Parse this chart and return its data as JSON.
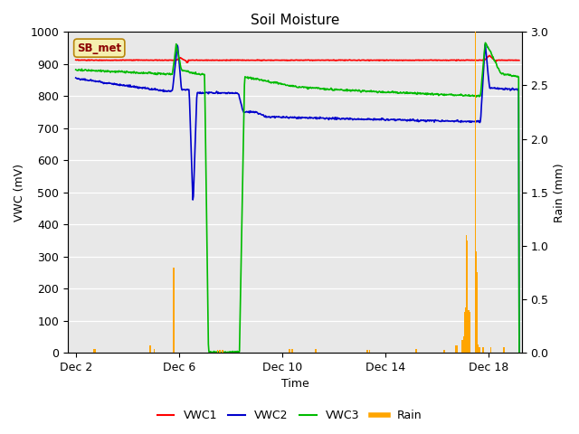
{
  "title": "Soil Moisture",
  "xlabel": "Time",
  "ylabel_left": "VWC (mV)",
  "ylabel_right": "Rain (mm)",
  "ylim_left": [
    0,
    1000
  ],
  "ylim_right": [
    0.0,
    3.0
  ],
  "yticks_left": [
    0,
    100,
    200,
    300,
    400,
    500,
    600,
    700,
    800,
    900,
    1000
  ],
  "yticks_right": [
    0.0,
    0.5,
    1.0,
    1.5,
    2.0,
    2.5,
    3.0
  ],
  "xticklabels": [
    "Dec 2",
    "Dec 6",
    "Dec 10",
    "Dec 14",
    "Dec 18"
  ],
  "xtick_positions": [
    0,
    4,
    8,
    12,
    16
  ],
  "xlim": [
    -0.3,
    17.3
  ],
  "background_color": "#ffffff",
  "plot_bg_color": "#e8e8e8",
  "grid_color": "#ffffff",
  "annotation": {
    "text": "SB_met",
    "bg": "#f5f0b0",
    "border": "#b8860b"
  },
  "legend_entries": [
    "VWC1",
    "VWC2",
    "VWC3",
    "Rain"
  ],
  "vwc1_color": "#ff0000",
  "vwc2_color": "#0000cc",
  "vwc3_color": "#00bb00",
  "rain_color": "#ffa500",
  "line_width": 1.2
}
